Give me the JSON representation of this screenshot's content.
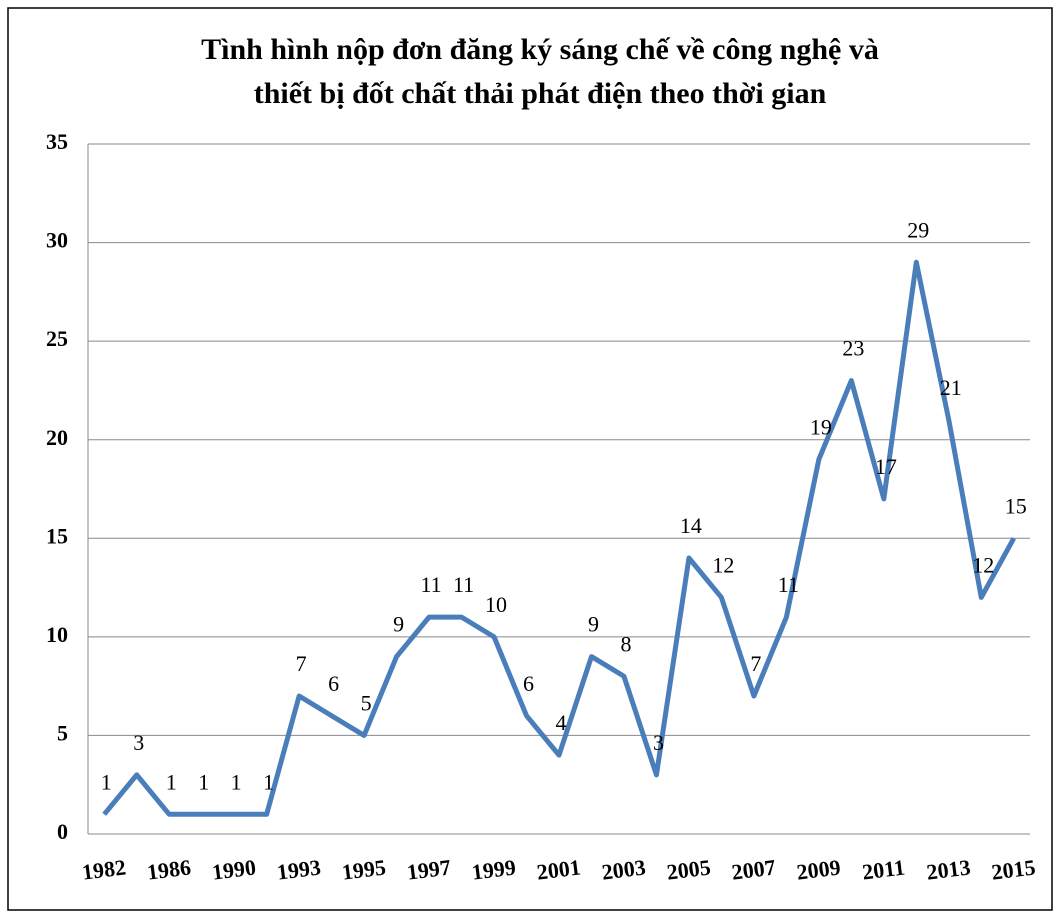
{
  "chart_data": {
    "type": "line",
    "title": [
      "Tình hình nộp đơn đăng ký sáng chế về công nghệ và",
      "thiết bị đốt chất thải phát điện theo thời gian"
    ],
    "categories": [
      "1982",
      null,
      "1986",
      null,
      "1990",
      null,
      "1993",
      null,
      "1995",
      null,
      "1997",
      null,
      "1999",
      null,
      "2001",
      null,
      "2003",
      null,
      "2005",
      null,
      "2007",
      null,
      "2009",
      null,
      "2011",
      null,
      "2013",
      null,
      "2015"
    ],
    "series": [
      {
        "color": "#4a7ebb",
        "values": [
          1,
          3,
          1,
          1,
          1,
          1,
          7,
          6,
          5,
          9,
          11,
          11,
          10,
          6,
          4,
          9,
          8,
          3,
          14,
          12,
          7,
          11,
          19,
          23,
          17,
          29,
          21,
          12,
          15
        ]
      }
    ],
    "ylim": [
      0,
      35
    ],
    "yticks": [
      0,
      5,
      10,
      15,
      20,
      25,
      30,
      35
    ],
    "grid": true
  }
}
